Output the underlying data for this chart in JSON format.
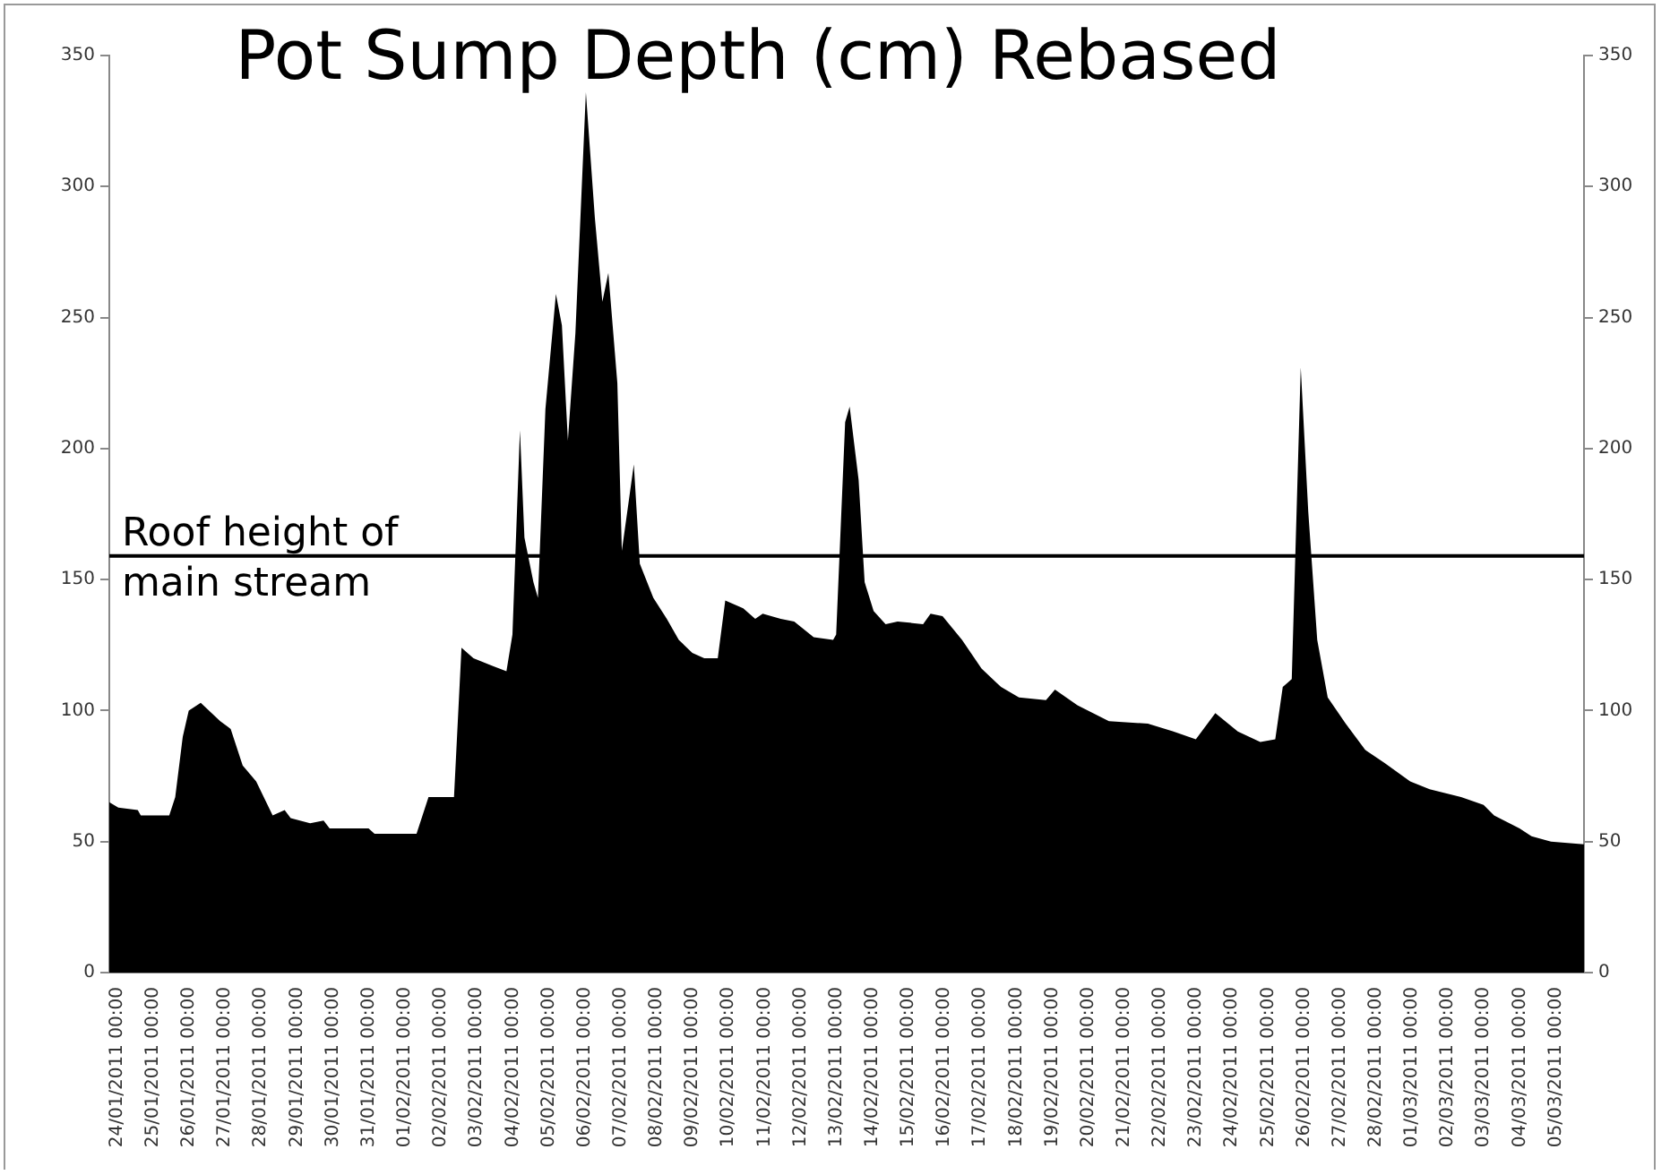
{
  "chart_data": {
    "type": "area",
    "title": "Pot Sump Depth (cm) Rebased",
    "x": [
      "2011-01-23T17:00",
      "2011-01-23T23:00",
      "2011-01-24T12:00",
      "2011-01-24T14:00",
      "2011-01-25T09:00",
      "2011-01-25T13:00",
      "2011-01-25T18:00",
      "2011-01-25T22:00",
      "2011-01-26T06:00",
      "2011-01-26T19:00",
      "2011-01-27T02:00",
      "2011-01-27T10:00",
      "2011-01-27T19:00",
      "2011-01-28T06:00",
      "2011-01-28T14:00",
      "2011-01-28T18:00",
      "2011-01-29T07:00",
      "2011-01-29T16:00",
      "2011-01-29T20:00",
      "2011-01-30T22:00",
      "2011-01-31T02:00",
      "2011-02-01T06:00",
      "2011-02-01T14:00",
      "2011-02-02T07:00",
      "2011-02-02T12:00",
      "2011-02-02T20:00",
      "2011-02-03T09:00",
      "2011-02-03T18:00",
      "2011-02-03T22:00",
      "2011-02-04T03:00",
      "2011-02-04T06:00",
      "2011-02-04T12:00",
      "2011-02-04T15:00",
      "2011-02-04T20:00",
      "2011-02-05T03:00",
      "2011-02-05T07:00",
      "2011-02-05T11:00",
      "2011-02-05T16:00",
      "2011-02-05T23:00",
      "2011-02-06T05:00",
      "2011-02-06T10:00",
      "2011-02-06T14:00",
      "2011-02-06T20:00",
      "2011-02-06T23:00",
      "2011-02-07T07:00",
      "2011-02-07T11:00",
      "2011-02-07T20:00",
      "2011-02-08T05:00",
      "2011-02-08T13:00",
      "2011-02-08T22:00",
      "2011-02-09T06:00",
      "2011-02-09T15:00",
      "2011-02-09T20:00",
      "2011-02-10T08:00",
      "2011-02-10T16:00",
      "2011-02-10T21:00",
      "2011-02-11T09:00",
      "2011-02-11T18:00",
      "2011-02-12T07:00",
      "2011-02-12T20:00",
      "2011-02-12T22:00",
      "2011-02-13T04:00",
      "2011-02-13T07:00",
      "2011-02-13T13:00",
      "2011-02-13T17:00",
      "2011-02-13T23:00",
      "2011-02-14T07:00",
      "2011-02-14T15:00",
      "2011-02-15T08:00",
      "2011-02-15T13:00",
      "2011-02-15T21:00",
      "2011-02-16T10:00",
      "2011-02-16T23:00",
      "2011-02-17T12:00",
      "2011-02-18T00:00",
      "2011-02-18T18:00",
      "2011-02-19T00:00",
      "2011-02-19T15:00",
      "2011-02-20T12:00",
      "2011-02-21T14:00",
      "2011-02-22T07:00",
      "2011-02-22T22:00",
      "2011-02-23T11:00",
      "2011-02-24T02:00",
      "2011-02-24T17:00",
      "2011-02-25T03:00",
      "2011-02-25T08:00",
      "2011-02-25T14:00",
      "2011-02-25T20:00",
      "2011-02-26T01:00",
      "2011-02-26T07:00",
      "2011-02-26T14:00",
      "2011-02-27T02:00",
      "2011-02-27T15:00",
      "2011-02-28T04:00",
      "2011-02-28T21:00",
      "2011-03-01T10:00",
      "2011-03-02T07:00",
      "2011-03-02T22:00",
      "2011-03-03T05:00",
      "2011-03-03T22:00",
      "2011-03-04T06:00",
      "2011-03-04T19:00",
      "2011-03-05T17:00"
    ],
    "series": [
      {
        "color": "#000000",
        "values": [
          65,
          63,
          62,
          60,
          60,
          67,
          90,
          100,
          103,
          96,
          93,
          79,
          73,
          60,
          62,
          59,
          57,
          58,
          55,
          55,
          53,
          53,
          67,
          67,
          124,
          120,
          117,
          115,
          129,
          207,
          166,
          149,
          143,
          215,
          259,
          247,
          203,
          244,
          336,
          288,
          256,
          267,
          225,
          161,
          194,
          156,
          143,
          135,
          127,
          122,
          120,
          120,
          142,
          139,
          135,
          137,
          135,
          134,
          128,
          127,
          129,
          210,
          216,
          188,
          149,
          138,
          133,
          134,
          133,
          137,
          136,
          127,
          116,
          109,
          105,
          104,
          108,
          102,
          96,
          95,
          92,
          89,
          99,
          92,
          88,
          89,
          109,
          112,
          231,
          176,
          127,
          105,
          95,
          85,
          80,
          73,
          70,
          67,
          64,
          60,
          55,
          52,
          50,
          49
        ]
      }
    ],
    "xlim": [
      "2011-01-23T17:00",
      "2011-03-05T17:00"
    ],
    "xticks": [
      {
        "value": "2011-01-24T00:00",
        "label": "24/01/2011 00:00"
      },
      {
        "value": "2011-01-25T00:00",
        "label": "25/01/2011 00:00"
      },
      {
        "value": "2011-01-26T00:00",
        "label": "26/01/2011 00:00"
      },
      {
        "value": "2011-01-27T00:00",
        "label": "27/01/2011 00:00"
      },
      {
        "value": "2011-01-28T00:00",
        "label": "28/01/2011 00:00"
      },
      {
        "value": "2011-01-29T00:00",
        "label": "29/01/2011 00:00"
      },
      {
        "value": "2011-01-30T00:00",
        "label": "30/01/2011 00:00"
      },
      {
        "value": "2011-01-31T00:00",
        "label": "31/01/2011 00:00"
      },
      {
        "value": "2011-02-01T00:00",
        "label": "01/02/2011 00:00"
      },
      {
        "value": "2011-02-02T00:00",
        "label": "02/02/2011 00:00"
      },
      {
        "value": "2011-02-03T00:00",
        "label": "03/02/2011 00:00"
      },
      {
        "value": "2011-02-04T00:00",
        "label": "04/02/2011 00:00"
      },
      {
        "value": "2011-02-05T00:00",
        "label": "05/02/2011 00:00"
      },
      {
        "value": "2011-02-06T00:00",
        "label": "06/02/2011 00:00"
      },
      {
        "value": "2011-02-07T00:00",
        "label": "07/02/2011 00:00"
      },
      {
        "value": "2011-02-08T00:00",
        "label": "08/02/2011 00:00"
      },
      {
        "value": "2011-02-09T00:00",
        "label": "09/02/2011 00:00"
      },
      {
        "value": "2011-02-10T00:00",
        "label": "10/02/2011 00:00"
      },
      {
        "value": "2011-02-11T00:00",
        "label": "11/02/2011 00:00"
      },
      {
        "value": "2011-02-12T00:00",
        "label": "12/02/2011 00:00"
      },
      {
        "value": "2011-02-13T00:00",
        "label": "13/02/2011 00:00"
      },
      {
        "value": "2011-02-14T00:00",
        "label": "14/02/2011 00:00"
      },
      {
        "value": "2011-02-15T00:00",
        "label": "15/02/2011 00:00"
      },
      {
        "value": "2011-02-16T00:00",
        "label": "16/02/2011 00:00"
      },
      {
        "value": "2011-02-17T00:00",
        "label": "17/02/2011 00:00"
      },
      {
        "value": "2011-02-18T00:00",
        "label": "18/02/2011 00:00"
      },
      {
        "value": "2011-02-19T00:00",
        "label": "19/02/2011 00:00"
      },
      {
        "value": "2011-02-20T00:00",
        "label": "20/02/2011 00:00"
      },
      {
        "value": "2011-02-21T00:00",
        "label": "21/02/2011 00:00"
      },
      {
        "value": "2011-02-22T00:00",
        "label": "22/02/2011 00:00"
      },
      {
        "value": "2011-02-23T00:00",
        "label": "23/02/2011 00:00"
      },
      {
        "value": "2011-02-24T00:00",
        "label": "24/02/2011 00:00"
      },
      {
        "value": "2011-02-25T00:00",
        "label": "25/02/2011 00:00"
      },
      {
        "value": "2011-02-26T00:00",
        "label": "26/02/2011 00:00"
      },
      {
        "value": "2011-02-27T00:00",
        "label": "27/02/2011 00:00"
      },
      {
        "value": "2011-02-28T00:00",
        "label": "28/02/2011 00:00"
      },
      {
        "value": "2011-03-01T00:00",
        "label": "01/03/2011 00:00"
      },
      {
        "value": "2011-03-02T00:00",
        "label": "02/03/2011 00:00"
      },
      {
        "value": "2011-03-03T00:00",
        "label": "03/03/2011 00:00"
      },
      {
        "value": "2011-03-04T00:00",
        "label": "04/03/2011 00:00"
      },
      {
        "value": "2011-03-05T00:00",
        "label": "05/03/2011 00:00"
      }
    ],
    "ylim": [
      0,
      350
    ],
    "yticks": [
      0,
      50,
      100,
      150,
      200,
      250,
      300,
      350
    ],
    "y2lim": [
      0,
      350
    ],
    "y2ticks": [
      0,
      50,
      100,
      150,
      200,
      250,
      300,
      350
    ],
    "ref_lines": [
      {
        "axis": "y",
        "value": 159,
        "label": "Roof height of main stream",
        "color": "#000000"
      }
    ],
    "grid": false,
    "legend": false
  }
}
